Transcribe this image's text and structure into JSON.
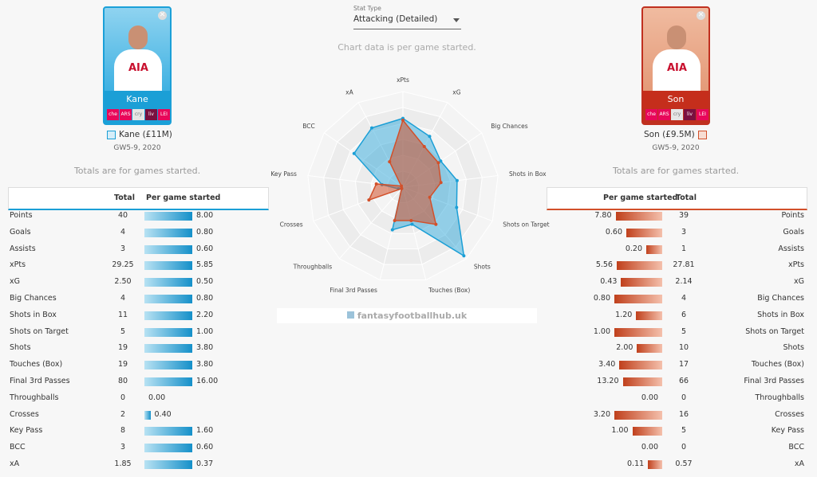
{
  "stat_type": {
    "label": "Stat Type",
    "value": "Attacking (Detailed)"
  },
  "note": "Chart data is per game started.",
  "watermark": "fantasyfootballhub.uk",
  "table_headers": {
    "total": "Total",
    "per_game": "Per game started"
  },
  "players": [
    {
      "name": "Kane",
      "gameweeks": "GW5-9, 2020",
      "totals_note": "Totals are for games started.",
      "fixtures": [
        "che",
        "ARS",
        "cry",
        "liv",
        "LEI"
      ],
      "rows": [
        {
          "stat": "Points",
          "total": "40",
          "per_game": 8,
          "per_game_label": "8.00"
        },
        {
          "stat": "Goals",
          "total": "4",
          "per_game": 0.8,
          "per_game_label": "0.80"
        },
        {
          "stat": "Assists",
          "total": "3",
          "per_game": 0.6,
          "per_game_label": "0.60"
        },
        {
          "stat": "xPts",
          "total": "29.25",
          "per_game": 5.85,
          "per_game_label": "5.85"
        },
        {
          "stat": "xG",
          "total": "2.50",
          "per_game": 0.5,
          "per_game_label": "0.50"
        },
        {
          "stat": "Big Chances",
          "total": "4",
          "per_game": 0.8,
          "per_game_label": "0.80"
        },
        {
          "stat": "Shots in Box",
          "total": "11",
          "per_game": 2.2,
          "per_game_label": "2.20"
        },
        {
          "stat": "Shots on Target",
          "total": "5",
          "per_game": 1,
          "per_game_label": "1.00"
        },
        {
          "stat": "Shots",
          "total": "19",
          "per_game": 3.8,
          "per_game_label": "3.80"
        },
        {
          "stat": "Touches (Box)",
          "total": "19",
          "per_game": 3.8,
          "per_game_label": "3.80"
        },
        {
          "stat": "Final 3rd Passes",
          "total": "80",
          "per_game": 16,
          "per_game_label": "16.00"
        },
        {
          "stat": "Throughballs",
          "total": "0",
          "per_game": 0,
          "per_game_label": "0.00"
        },
        {
          "stat": "Crosses",
          "total": "2",
          "per_game": 0.4,
          "per_game_label": "0.40"
        },
        {
          "stat": "Key Pass",
          "total": "8",
          "per_game": 1.6,
          "per_game_label": "1.60"
        },
        {
          "stat": "BCC",
          "total": "3",
          "per_game": 0.6,
          "per_game_label": "0.60"
        },
        {
          "stat": "xA",
          "total": "1.85",
          "per_game": 0.37,
          "per_game_label": "0.37"
        }
      ]
    },
    {
      "name": "Son",
      "gameweeks": "GW5-9, 2020",
      "totals_note": "Totals are for games started.",
      "fixtures": [
        "che",
        "ARS",
        "cry",
        "liv",
        "LEI"
      ],
      "rows": [
        {
          "stat": "Points",
          "total": "39",
          "per_game": 7.8,
          "per_game_label": "7.80"
        },
        {
          "stat": "Goals",
          "total": "3",
          "per_game": 0.6,
          "per_game_label": "0.60"
        },
        {
          "stat": "Assists",
          "total": "1",
          "per_game": 0.2,
          "per_game_label": "0.20"
        },
        {
          "stat": "xPts",
          "total": "27.81",
          "per_game": 5.56,
          "per_game_label": "5.56"
        },
        {
          "stat": "xG",
          "total": "2.14",
          "per_game": 0.43,
          "per_game_label": "0.43"
        },
        {
          "stat": "Big Chances",
          "total": "4",
          "per_game": 0.8,
          "per_game_label": "0.80"
        },
        {
          "stat": "Shots in Box",
          "total": "6",
          "per_game": 1.2,
          "per_game_label": "1.20"
        },
        {
          "stat": "Shots on Target",
          "total": "5",
          "per_game": 1,
          "per_game_label": "1.00"
        },
        {
          "stat": "Shots",
          "total": "10",
          "per_game": 2,
          "per_game_label": "2.00"
        },
        {
          "stat": "Touches (Box)",
          "total": "17",
          "per_game": 3.4,
          "per_game_label": "3.40"
        },
        {
          "stat": "Final 3rd Passes",
          "total": "66",
          "per_game": 13.2,
          "per_game_label": "13.20"
        },
        {
          "stat": "Throughballs",
          "total": "0",
          "per_game": 0,
          "per_game_label": "0.00"
        },
        {
          "stat": "Crosses",
          "total": "16",
          "per_game": 3.2,
          "per_game_label": "3.20"
        },
        {
          "stat": "Key Pass",
          "total": "5",
          "per_game": 1,
          "per_game_label": "1.00"
        },
        {
          "stat": "BCC",
          "total": "0",
          "per_game": 0,
          "per_game_label": "0.00"
        },
        {
          "stat": "xA",
          "total": "0.57",
          "per_game": 0.11,
          "per_game_label": "0.11"
        }
      ]
    }
  ],
  "chart_data": {
    "type": "radar",
    "axes": [
      "xPts",
      "xG",
      "Big Chances",
      "Shots in Box",
      "Shots on Target",
      "Shots",
      "Touches (Box)",
      "Final 3rd Passes",
      "Throughballs",
      "Crosses",
      "Key Pass",
      "BCC",
      "xA"
    ],
    "rlim": [
      0,
      1
    ],
    "series": [
      {
        "name": "Kane (£11M)",
        "color": "#1b9fd6",
        "values": [
          0.72,
          0.6,
          0.48,
          0.57,
          0.6,
          0.96,
          0.4,
          0.46,
          0.02,
          0.05,
          0.22,
          0.62,
          0.7
        ]
      },
      {
        "name": "Son (£9.5M)",
        "color": "#d2502a",
        "values": [
          0.7,
          0.48,
          0.45,
          0.4,
          0.3,
          0.52,
          0.36,
          0.36,
          0.02,
          0.38,
          0.28,
          0.02,
          0.3
        ]
      }
    ]
  }
}
